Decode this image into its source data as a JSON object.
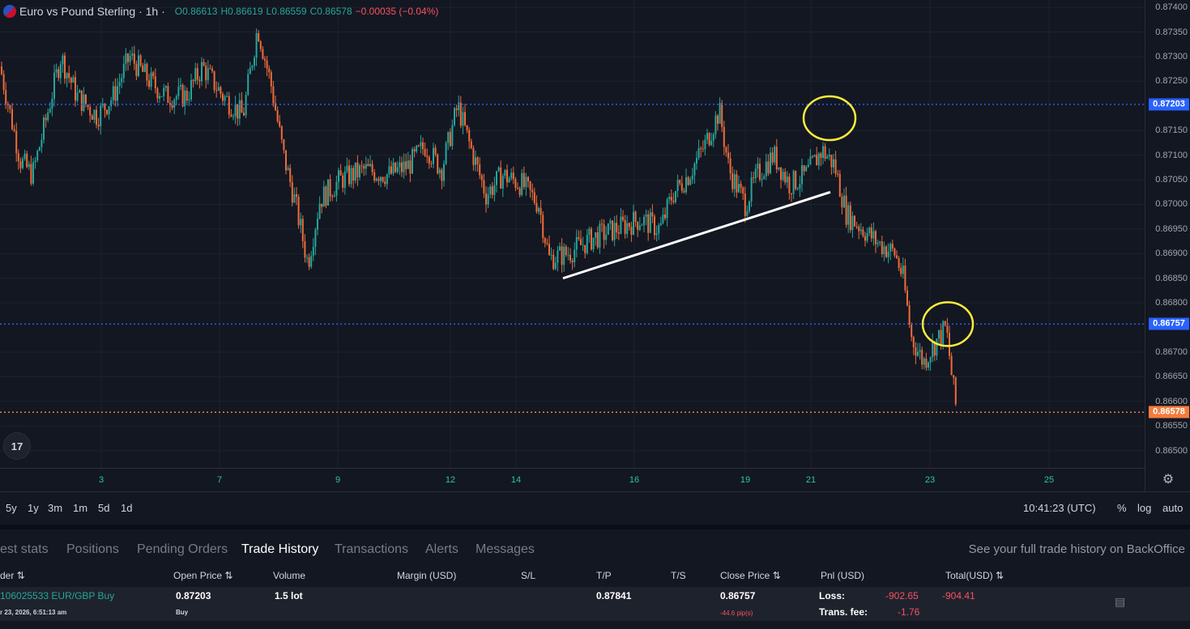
{
  "legend": {
    "symbol": "Euro vs Pound Sterling · 1h ·",
    "open": "O0.86613",
    "high": "H0.86619",
    "low": "L0.86559",
    "close": "C0.86578",
    "change": "−0.00035 (−0.04%)"
  },
  "price_axis": {
    "ticks": [
      "0.87400",
      "0.87350",
      "0.87300",
      "0.87250",
      "0.87150",
      "0.87100",
      "0.87050",
      "0.87000",
      "0.86950",
      "0.86900",
      "0.86850",
      "0.86800",
      "0.86700",
      "0.86650",
      "0.86600",
      "0.86550",
      "0.86500"
    ],
    "tags": [
      {
        "label": "0.87203",
        "value": 0.87203,
        "color": "#2962ff"
      },
      {
        "label": "0.86757",
        "value": 0.86757,
        "color": "#2962ff"
      },
      {
        "label": "0.86578",
        "value": 0.86578,
        "color": "#f57c3c"
      }
    ]
  },
  "time_axis": {
    "labels": [
      "3",
      "7",
      "9",
      "12",
      "14",
      "16",
      "19",
      "21",
      "23",
      "25"
    ]
  },
  "logo": "17",
  "settings_icon": "gear-icon",
  "range_buttons": [
    "5y",
    "1y",
    "3m",
    "1m",
    "5d",
    "1d"
  ],
  "clock": "10:41:23 (UTC)",
  "axis_options": [
    "%",
    "log",
    "auto"
  ],
  "tabs": {
    "items": [
      "est stats",
      "Positions",
      "Pending Orders",
      "Trade History",
      "Transactions",
      "Alerts",
      "Messages"
    ],
    "active": "Trade History",
    "backoffice": "See your full trade history on BackOffice"
  },
  "table": {
    "headers": [
      "der ⇅",
      "Open Price ⇅",
      "Volume",
      "Margin (USD)",
      "S/L",
      "T/P",
      "T/S",
      "Close Price ⇅",
      "Pnl (USD)",
      "Total(USD) ⇅"
    ],
    "row": {
      "order": "106025533 EUR/GBP Buy",
      "date": "r 23, 2026, 6:51:13 am",
      "open_price": "0.87203",
      "side": "Buy",
      "volume": "1.5 lot",
      "tp": "0.87841",
      "close_price": "0.86757",
      "pips": "-44.6 pip(s)",
      "loss_label": "Loss:",
      "loss_value": "-902.65",
      "fee_label": "Trans. fee:",
      "fee_value": "-1.76",
      "total": "-904.41"
    }
  },
  "chart_data": {
    "type": "candlestick",
    "instrument": "EUR/GBP",
    "interval": "1h",
    "ylim": [
      0.86465,
      0.87415
    ],
    "up_color": "#26a69a",
    "down_color": "#ef6c3a",
    "x_ticks": [
      "3",
      "7",
      "9",
      "12",
      "14",
      "16",
      "19",
      "21",
      "23",
      "25"
    ],
    "horizontal_lines": [
      0.87203,
      0.86757,
      0.86578
    ],
    "close_path": [
      {
        "x": 0,
        "y": 0.8728
      },
      {
        "x": 25,
        "y": 0.8709
      },
      {
        "x": 40,
        "y": 0.8706
      },
      {
        "x": 55,
        "y": 0.8716
      },
      {
        "x": 75,
        "y": 0.873
      },
      {
        "x": 95,
        "y": 0.8722
      },
      {
        "x": 120,
        "y": 0.8718
      },
      {
        "x": 140,
        "y": 0.8722
      },
      {
        "x": 160,
        "y": 0.873
      },
      {
        "x": 185,
        "y": 0.8725
      },
      {
        "x": 205,
        "y": 0.8722
      },
      {
        "x": 230,
        "y": 0.8722
      },
      {
        "x": 250,
        "y": 0.8728
      },
      {
        "x": 275,
        "y": 0.8722
      },
      {
        "x": 300,
        "y": 0.8718
      },
      {
        "x": 318,
        "y": 0.8736
      },
      {
        "x": 335,
        "y": 0.8724
      },
      {
        "x": 350,
        "y": 0.871
      },
      {
        "x": 365,
        "y": 0.87
      },
      {
        "x": 380,
        "y": 0.8688
      },
      {
        "x": 395,
        "y": 0.8701
      },
      {
        "x": 420,
        "y": 0.8705
      },
      {
        "x": 450,
        "y": 0.8707
      },
      {
        "x": 480,
        "y": 0.8706
      },
      {
        "x": 505,
        "y": 0.8708
      },
      {
        "x": 525,
        "y": 0.8712
      },
      {
        "x": 545,
        "y": 0.8707
      },
      {
        "x": 565,
        "y": 0.872
      },
      {
        "x": 580,
        "y": 0.8712
      },
      {
        "x": 600,
        "y": 0.8702
      },
      {
        "x": 620,
        "y": 0.8706
      },
      {
        "x": 645,
        "y": 0.8704
      },
      {
        "x": 665,
        "y": 0.87
      },
      {
        "x": 678,
        "y": 0.8689
      },
      {
        "x": 700,
        "y": 0.869
      },
      {
        "x": 730,
        "y": 0.8693
      },
      {
        "x": 760,
        "y": 0.8695
      },
      {
        "x": 790,
        "y": 0.8697
      },
      {
        "x": 815,
        "y": 0.8695
      },
      {
        "x": 830,
        "y": 0.8702
      },
      {
        "x": 850,
        "y": 0.8706
      },
      {
        "x": 870,
        "y": 0.8712
      },
      {
        "x": 888,
        "y": 0.8719
      },
      {
        "x": 900,
        "y": 0.8707
      },
      {
        "x": 920,
        "y": 0.87
      },
      {
        "x": 935,
        "y": 0.8706
      },
      {
        "x": 955,
        "y": 0.871
      },
      {
        "x": 975,
        "y": 0.8704
      },
      {
        "x": 995,
        "y": 0.8706
      },
      {
        "x": 1015,
        "y": 0.8711
      },
      {
        "x": 1030,
        "y": 0.8708
      },
      {
        "x": 1045,
        "y": 0.8698
      },
      {
        "x": 1065,
        "y": 0.8695
      },
      {
        "x": 1085,
        "y": 0.8692
      },
      {
        "x": 1105,
        "y": 0.869
      },
      {
        "x": 1115,
        "y": 0.8685
      },
      {
        "x": 1125,
        "y": 0.8673
      },
      {
        "x": 1140,
        "y": 0.8668
      },
      {
        "x": 1155,
        "y": 0.8672
      },
      {
        "x": 1168,
        "y": 0.8675
      },
      {
        "x": 1175,
        "y": 0.8665
      },
      {
        "x": 1181,
        "y": 0.86578
      }
    ],
    "annotations": {
      "trendline": [
        {
          "x": 695,
          "y": 0.8685
        },
        {
          "x": 1025,
          "y": 0.87025
        }
      ],
      "circles": [
        {
          "x": 1024,
          "y": 0.87175,
          "color": "#ffeb3b"
        },
        {
          "x": 1170,
          "y": 0.86757,
          "color": "#ffeb3b"
        }
      ]
    }
  }
}
